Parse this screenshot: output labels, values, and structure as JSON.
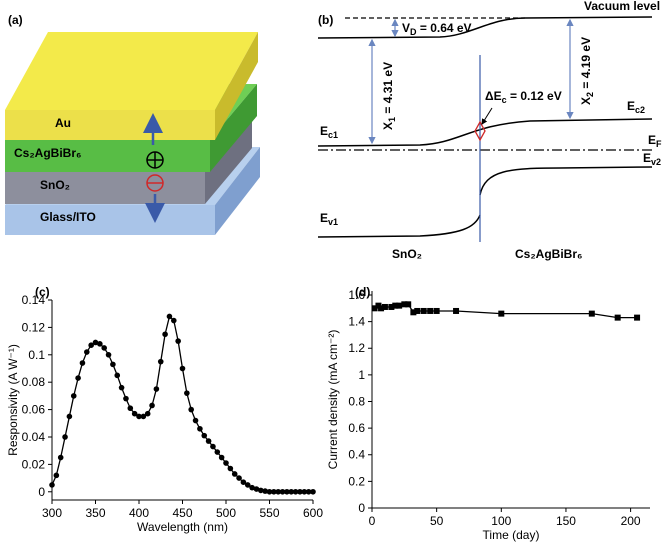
{
  "diagram_a": {
    "panel": "(a)",
    "layers": [
      "Au",
      "Cs₂AgBiBr₆",
      "SnO₂",
      "Glass/ITO"
    ]
  },
  "diagram_b": {
    "panel": "(b)",
    "vacuum_level": "Vacuum level",
    "vd": [
      "V",
      "D",
      " = 0.64 eV"
    ],
    "chi1": [
      "X",
      "1",
      " = 4.31 eV"
    ],
    "chi2": [
      "X",
      "2",
      " = 4.19 eV"
    ],
    "delta_ec": [
      "ΔE",
      "c",
      " = 0.12 eV"
    ],
    "ec1": [
      "E",
      "c1"
    ],
    "ec2": [
      "E",
      "c2"
    ],
    "ef": [
      "E",
      "F"
    ],
    "ev2": [
      "E",
      "v2"
    ],
    "ev1": [
      "E",
      "v1"
    ],
    "left_material": "SnO₂",
    "right_material": "Cs₂AgBiBr₆"
  },
  "chart_data": [
    {
      "type": "line",
      "panel": "(c)",
      "x_label": "Wavelength (nm)",
      "y_label": "Responsivity (A W⁻¹)",
      "marker": "circle",
      "color": "#000000",
      "x": [
        300,
        305,
        310,
        315,
        320,
        325,
        330,
        335,
        340,
        345,
        350,
        355,
        360,
        365,
        370,
        375,
        380,
        385,
        390,
        395,
        400,
        405,
        410,
        415,
        420,
        425,
        430,
        435,
        440,
        445,
        450,
        455,
        460,
        465,
        470,
        475,
        480,
        485,
        490,
        495,
        500,
        505,
        510,
        515,
        520,
        525,
        530,
        535,
        540,
        545,
        550,
        555,
        560,
        565,
        570,
        575,
        580,
        585,
        590,
        595,
        600
      ],
      "values": [
        0.005,
        0.012,
        0.025,
        0.04,
        0.055,
        0.07,
        0.083,
        0.094,
        0.102,
        0.107,
        0.109,
        0.108,
        0.105,
        0.1,
        0.093,
        0.085,
        0.076,
        0.068,
        0.061,
        0.057,
        0.055,
        0.055,
        0.057,
        0.063,
        0.075,
        0.095,
        0.115,
        0.128,
        0.125,
        0.11,
        0.09,
        0.072,
        0.06,
        0.052,
        0.046,
        0.041,
        0.037,
        0.033,
        0.029,
        0.025,
        0.021,
        0.017,
        0.013,
        0.01,
        0.007,
        0.005,
        0.003,
        0.002,
        0.001,
        0.0005,
        0,
        0,
        0,
        0,
        0,
        0,
        0,
        0,
        0,
        0,
        0
      ],
      "xlim": [
        300,
        600
      ],
      "xticks": [
        300,
        350,
        400,
        450,
        500,
        550,
        600
      ],
      "ylim": [
        -0.006,
        0.14
      ],
      "yticks": [
        0,
        0.02,
        0.04,
        0.06,
        0.08,
        0.1,
        0.12,
        0.14
      ]
    },
    {
      "type": "line",
      "panel": "(d)",
      "x_label": "Time (day)",
      "y_label": "Current density (mA cm⁻²)",
      "marker": "square",
      "color": "#000000",
      "x": [
        2,
        5,
        7,
        10,
        15,
        18,
        21,
        25,
        28,
        32,
        35,
        40,
        45,
        50,
        65,
        100,
        170,
        190,
        205
      ],
      "values": [
        1.5,
        1.52,
        1.5,
        1.51,
        1.51,
        1.52,
        1.52,
        1.53,
        1.53,
        1.47,
        1.48,
        1.48,
        1.48,
        1.48,
        1.48,
        1.46,
        1.46,
        1.43,
        1.43
      ],
      "xlim": [
        0,
        215
      ],
      "xticks": [
        0,
        50,
        100,
        150,
        200
      ],
      "ylim": [
        0,
        1.63
      ],
      "yticks": [
        0,
        0.2,
        0.4,
        0.6,
        0.8,
        1,
        1.2,
        1.4,
        1.6
      ]
    }
  ]
}
